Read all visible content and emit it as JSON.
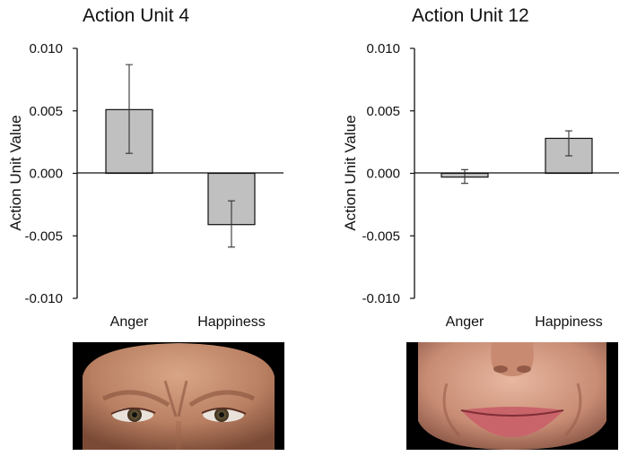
{
  "chart_data": [
    {
      "type": "bar",
      "title": "Action Unit 4",
      "xlabel": "",
      "ylabel": "Action Unit Value",
      "categories": [
        "Anger",
        "Happiness"
      ],
      "values": [
        0.0051,
        -0.0041
      ],
      "error_low": [
        0.0016,
        -0.0059
      ],
      "error_high": [
        0.0087,
        -0.0022
      ],
      "ylim": [
        -0.01,
        0.01
      ],
      "yticks": [
        "0.010",
        "0.005",
        "0.000",
        "-0.005",
        "-0.010"
      ],
      "ytick_values": [
        0.01,
        0.005,
        0,
        -0.005,
        -0.01
      ],
      "grid": false,
      "bar_color": "#c0c0c0"
    },
    {
      "type": "bar",
      "title": "Action Unit 12",
      "xlabel": "",
      "ylabel": "Action Unit Value",
      "categories": [
        "Anger",
        "Happiness"
      ],
      "values": [
        -0.0003,
        0.0028
      ],
      "error_low": [
        -0.0008,
        0.0014
      ],
      "error_high": [
        0.0003,
        0.0034
      ],
      "ylim": [
        -0.01,
        0.01
      ],
      "yticks": [
        "0.010",
        "0.005",
        "0.000",
        "-0.005",
        "-0.010"
      ],
      "ytick_values": [
        0.01,
        0.005,
        0,
        -0.005,
        -0.01
      ],
      "grid": false,
      "bar_color": "#c0c0c0"
    }
  ],
  "images": [
    {
      "depicts": "brow-lowerer-face"
    },
    {
      "depicts": "smiling-face"
    }
  ]
}
